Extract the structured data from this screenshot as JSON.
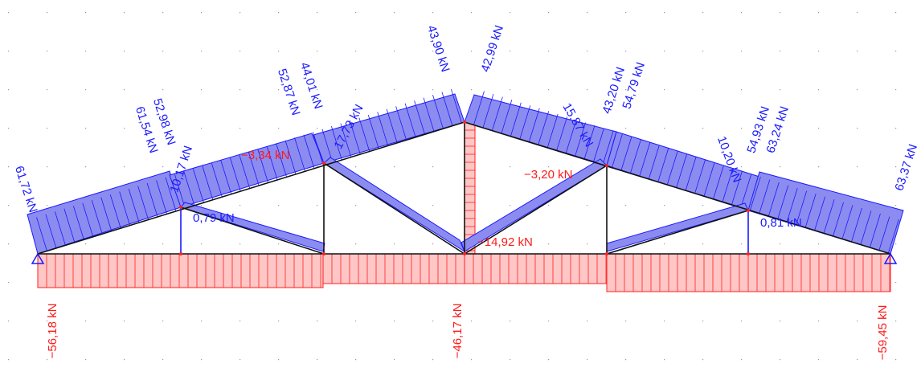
{
  "diagram": {
    "colors": {
      "compression_fill": "#8c8cf0",
      "compression_line": "#1a1aff",
      "tension_fill": "#ffc6c6",
      "tension_line": "#ff2020",
      "member": "#111111",
      "grid_dot": "#9a9a9a"
    },
    "labels": {
      "top_left_end": "61,72 kN",
      "top_seg1_right_a": "61,54 kN",
      "top_seg1_right_b": "52,98 kN",
      "top_seg2_right_a": "52,87 kN",
      "top_seg2_right_b": "44,01 kN",
      "top_left_apex": "43,90 kN",
      "top_right_apex": "42,99 kN",
      "top_seg4_left_a": "43,20 kN",
      "top_seg4_left_b": "54,79 kN",
      "top_seg5_left_a": "54,93 kN",
      "top_seg5_left_b": "63,24 kN",
      "top_right_end": "63,37 kN",
      "diag_left_inner": "10,17 kN",
      "diag_left_center": "17,73 kN",
      "diag_right_center": "15,87 kN",
      "diag_right_inner": "10,20 kN",
      "vert_left_outer": "0,79 kN",
      "vert_right_outer": "0,81 kN",
      "vert_left_inner": "−3,34 kN",
      "vert_right_inner": "−3,20 kN",
      "center_post": "−14,92 kN",
      "bottom_left": "−56,18 kN",
      "bottom_center": "−46,17 kN",
      "bottom_right": "−59,45 kN"
    }
  }
}
